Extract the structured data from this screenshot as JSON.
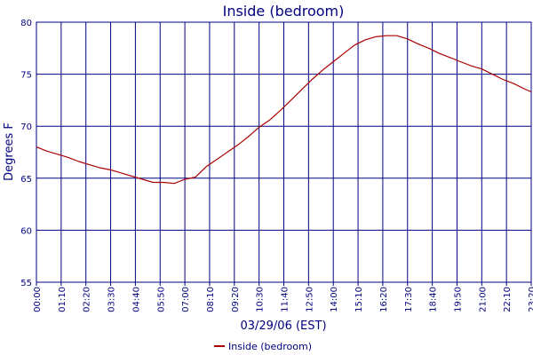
{
  "chart_data": {
    "type": "line",
    "title": "Inside (bedroom)",
    "xlabel": "03/29/06 (EST)",
    "ylabel": "Degrees F",
    "ylim": [
      55,
      80
    ],
    "yticks": [
      "55",
      "60",
      "65",
      "70",
      "75",
      "80"
    ],
    "xticks": [
      "00:00",
      "01:10",
      "02:20",
      "03:30",
      "04:40",
      "05:50",
      "07:00",
      "08:10",
      "09:20",
      "10:30",
      "11:40",
      "12:50",
      "14:00",
      "15:10",
      "16:20",
      "17:30",
      "18:40",
      "19:50",
      "21:00",
      "22:10",
      "23:20"
    ],
    "grid": true,
    "legend": "bottom-center",
    "colors": {
      "series": "#aa0000",
      "grid": "#000080",
      "text": "#000080"
    },
    "series": [
      {
        "name": "Inside (bedroom)",
        "x": [
          "00:00",
          "00:30",
          "01:00",
          "01:30",
          "02:00",
          "02:30",
          "03:00",
          "03:30",
          "04:00",
          "04:30",
          "05:00",
          "05:30",
          "06:00",
          "06:30",
          "07:00",
          "07:30",
          "08:00",
          "08:30",
          "09:00",
          "09:30",
          "10:00",
          "10:30",
          "11:00",
          "11:30",
          "12:00",
          "12:30",
          "13:00",
          "13:30",
          "14:00",
          "14:30",
          "15:00",
          "15:30",
          "16:00",
          "16:30",
          "17:00",
          "17:30",
          "18:00",
          "18:30",
          "19:00",
          "19:30",
          "20:00",
          "20:30",
          "21:00",
          "21:30",
          "22:00",
          "22:30",
          "23:00",
          "23:20"
        ],
        "values": [
          68.0,
          67.6,
          67.3,
          67.0,
          66.6,
          66.3,
          66.0,
          65.8,
          65.5,
          65.2,
          64.9,
          64.6,
          64.6,
          64.5,
          64.9,
          65.1,
          66.1,
          66.8,
          67.5,
          68.2,
          69.0,
          69.9,
          70.6,
          71.5,
          72.5,
          73.5,
          74.5,
          75.4,
          76.2,
          77.0,
          77.8,
          78.3,
          78.6,
          78.7,
          78.7,
          78.4,
          77.9,
          77.5,
          77.0,
          76.6,
          76.2,
          75.8,
          75.5,
          75.0,
          74.5,
          74.1,
          73.6,
          73.3
        ]
      }
    ]
  }
}
